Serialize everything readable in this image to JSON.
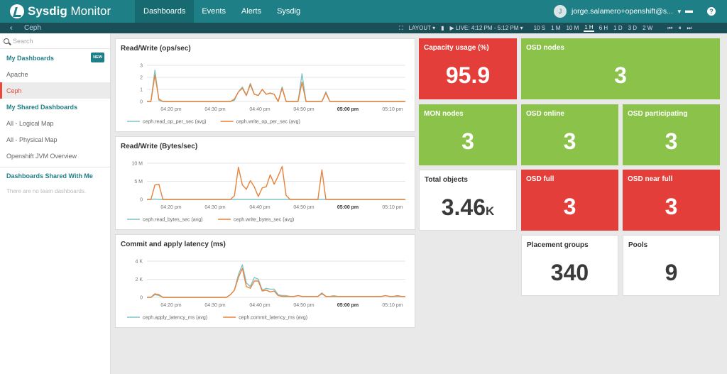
{
  "brand": {
    "name_bold": "Sysdig",
    "name_light": " Monitor"
  },
  "nav": [
    "Dashboards",
    "Events",
    "Alerts",
    "Sysdig"
  ],
  "user": {
    "initial": "J",
    "email": "jorge.salamero+openshift@s..."
  },
  "breadcrumb": {
    "back": "‹",
    "title": "Ceph"
  },
  "controls": {
    "layout": "LAYOUT ▾",
    "live": "▶ LIVE: 4:12 PM - 5:12 PM ▾",
    "ranges": [
      "10 S",
      "1 M",
      "10 M",
      "1 H",
      "6 H",
      "1 D",
      "3 D",
      "2 W"
    ],
    "active_range": "1 H"
  },
  "sidebar": {
    "search_placeholder": "Search",
    "my_dashboards": "My Dashboards",
    "new_badge": "NEW",
    "my_items": [
      "Apache",
      "Ceph"
    ],
    "shared_head": "My Shared Dashboards",
    "shared_items": [
      "All - Logical Map",
      "All - Physical Map",
      "Openshift JVM Overview"
    ],
    "team_head": "Dashboards Shared With Me",
    "team_empty": "There are no team dashboards."
  },
  "x_ticks": [
    "04:20 pm",
    "04:30 pm",
    "04:40 pm",
    "04:50 pm",
    "05:00 pm",
    "05:10 pm"
  ],
  "colors": {
    "series_a": "#7fc4c9",
    "series_b": "#e8823a"
  },
  "chart_data": [
    {
      "type": "line",
      "title": "Read/Write (ops/sec)",
      "yticks": [
        "0",
        "1",
        "2",
        "3"
      ],
      "ylim": [
        0,
        3
      ],
      "series": [
        {
          "name": "ceph.read_op_per_sec (avg)",
          "values": [
            0,
            0,
            2.6,
            0.1,
            0,
            0,
            0,
            0,
            0,
            0,
            0,
            0,
            0,
            0,
            0,
            0,
            0,
            0,
            0,
            0,
            0,
            0,
            0.1,
            0.8,
            1.2,
            0.5,
            1.5,
            0.6,
            0.5,
            1,
            0.6,
            0.7,
            0.6,
            0,
            1.2,
            0,
            0,
            0,
            0,
            2.3,
            0,
            0,
            0,
            0,
            0,
            0.8,
            0,
            0,
            0,
            0,
            0,
            0,
            0,
            0,
            0,
            0,
            0,
            0,
            0,
            0,
            0,
            0,
            0,
            0,
            0,
            0
          ]
        },
        {
          "name": "ceph.write_op_per_sec (avg)",
          "values": [
            0,
            0,
            2.2,
            0.2,
            0,
            0,
            0,
            0,
            0,
            0,
            0,
            0,
            0,
            0,
            0,
            0,
            0,
            0,
            0,
            0,
            0,
            0,
            0.2,
            0.8,
            1.1,
            0.5,
            1.4,
            0.6,
            0.5,
            1,
            0.6,
            0.7,
            0.6,
            0,
            1.1,
            0,
            0,
            0,
            0,
            1.6,
            0,
            0,
            0,
            0,
            0,
            0.7,
            0,
            0,
            0,
            0,
            0,
            0,
            0,
            0,
            0,
            0,
            0,
            0,
            0,
            0,
            0,
            0,
            0,
            0,
            0,
            0
          ]
        }
      ]
    },
    {
      "type": "line",
      "title": "Read/Write (Bytes/sec)",
      "yticks": [
        "0",
        "5 M",
        "10 M"
      ],
      "ylim": [
        0,
        10
      ],
      "series": [
        {
          "name": "ceph.read_bytes_sec (avg)",
          "values": [
            0,
            0,
            0.1,
            0,
            0,
            0,
            0,
            0,
            0,
            0,
            0,
            0,
            0,
            0,
            0,
            0,
            0,
            0,
            0,
            0,
            0,
            0,
            0,
            0,
            0,
            0,
            0,
            0,
            0,
            0,
            0,
            0,
            0,
            0,
            0,
            0,
            0,
            0,
            0,
            0,
            0,
            0,
            0,
            0,
            0,
            0,
            0,
            0,
            0,
            0,
            0,
            0,
            0,
            0,
            0,
            0,
            0,
            0,
            0,
            0,
            0,
            0,
            0,
            0,
            0,
            0
          ]
        },
        {
          "name": "ceph.write_bytes_sec (avg)",
          "values": [
            0,
            0,
            4,
            4.2,
            0,
            0,
            0,
            0,
            0,
            0,
            0,
            0,
            0,
            0,
            0,
            0,
            0,
            0,
            0,
            0,
            0,
            0,
            1,
            8.9,
            4,
            2.8,
            5.2,
            3.5,
            0.8,
            3.2,
            3.5,
            6.8,
            4.2,
            6.5,
            9.1,
            1.1,
            0,
            0,
            0,
            0,
            0,
            0,
            0,
            0,
            8.2,
            0,
            0,
            0,
            0,
            0,
            0,
            0,
            0,
            0,
            0,
            0,
            0,
            0,
            0,
            0,
            0,
            0,
            0,
            0,
            0,
            0
          ]
        }
      ]
    },
    {
      "type": "line",
      "title": "Commit and apply latency (ms)",
      "yticks": [
        "0",
        "2 K",
        "4 K"
      ],
      "ylim": [
        0,
        4
      ],
      "series": [
        {
          "name": "ceph.apply_latency_ms (avg)",
          "values": [
            0,
            0,
            0.3,
            0.2,
            0,
            0,
            0,
            0,
            0,
            0,
            0,
            0,
            0,
            0,
            0,
            0,
            0,
            0,
            0,
            0,
            0,
            0.3,
            0.8,
            2.5,
            3.6,
            1.6,
            1.2,
            2.2,
            2,
            0.8,
            1,
            0.9,
            0.9,
            0.3,
            0.2,
            0.2,
            0.1,
            0.1,
            0.2,
            0.1,
            0.1,
            0.1,
            0.1,
            0.1,
            0.5,
            0.1,
            0.1,
            0.2,
            0.1,
            0.1,
            0.1,
            0.1,
            0.1,
            0.1,
            0.1,
            0.1,
            0.1,
            0.1,
            0.1,
            0.1,
            0.2,
            0.1,
            0.1,
            0.1,
            0.1,
            0.1
          ]
        },
        {
          "name": "ceph.commit_latency_ms (avg)",
          "values": [
            0,
            0,
            0.4,
            0.3,
            0,
            0,
            0,
            0,
            0,
            0,
            0,
            0,
            0,
            0,
            0,
            0,
            0,
            0,
            0,
            0,
            0,
            0.3,
            0.8,
            2.2,
            3.2,
            1.2,
            1,
            1.8,
            1.8,
            0.7,
            0.8,
            0.6,
            0.7,
            0.2,
            0.1,
            0.1,
            0.1,
            0.1,
            0.2,
            0.1,
            0.1,
            0.1,
            0.1,
            0.1,
            0.4,
            0.1,
            0.1,
            0.1,
            0.1,
            0.1,
            0.1,
            0.1,
            0.1,
            0.1,
            0.1,
            0.1,
            0.1,
            0.1,
            0.1,
            0.1,
            0.2,
            0.1,
            0.1,
            0.2,
            0.1,
            0.1
          ]
        }
      ]
    }
  ],
  "tiles": {
    "capacity": {
      "title": "Capacity usage (%)",
      "value": "95.9"
    },
    "osd_nodes": {
      "title": "OSD nodes",
      "value": "3"
    },
    "mon_nodes": {
      "title": "MON nodes",
      "value": "3"
    },
    "osd_online": {
      "title": "OSD online",
      "value": "3"
    },
    "osd_participating": {
      "title": "OSD participating",
      "value": "3"
    },
    "total_objects": {
      "title": "Total objects",
      "value": "3.46",
      "unit": "K"
    },
    "osd_full": {
      "title": "OSD full",
      "value": "3"
    },
    "osd_near_full": {
      "title": "OSD near full",
      "value": "3"
    },
    "placement_groups": {
      "title": "Placement groups",
      "value": "340"
    },
    "pools": {
      "title": "Pools",
      "value": "9"
    }
  }
}
